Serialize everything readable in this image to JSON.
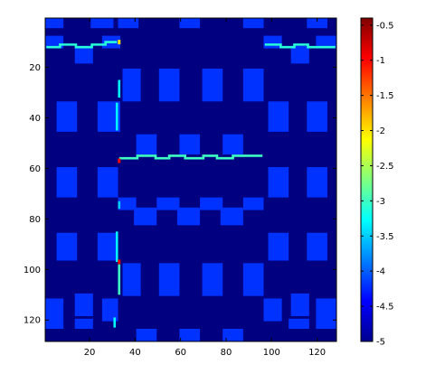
{
  "chart_data": {
    "type": "heatmap",
    "title": "",
    "xlabel": "",
    "ylabel": "",
    "xlim": [
      0.5,
      128.5
    ],
    "ylim": [
      128.5,
      0.5
    ],
    "x_ticks": [
      20,
      40,
      60,
      80,
      100,
      120
    ],
    "y_ticks": [
      20,
      40,
      60,
      80,
      100,
      120
    ],
    "colormap": "jet",
    "clim": [
      -5,
      -0.4
    ],
    "background_value": -5,
    "colorbar": {
      "placement": "right",
      "ticks": [
        "-0.5",
        "-1",
        "-1.5",
        "-2",
        "-2.5",
        "-3",
        "-3.5",
        "-4",
        "-4.5",
        "-5"
      ],
      "tick_values": [
        -0.5,
        -1,
        -1.5,
        -2,
        -2.5,
        -3,
        -3.5,
        -4,
        -4.5,
        -5
      ]
    },
    "blocks_value": -4.2,
    "blocks": [
      [
        1,
        1,
        8,
        4
      ],
      [
        21,
        1,
        30,
        4
      ],
      [
        33,
        1,
        41,
        4
      ],
      [
        60,
        1,
        68,
        4
      ],
      [
        88,
        1,
        96,
        4
      ],
      [
        116,
        1,
        124,
        4
      ],
      [
        1,
        8,
        8,
        12
      ],
      [
        14,
        12,
        21,
        18
      ],
      [
        26,
        8,
        33,
        12
      ],
      [
        97,
        8,
        104,
        12
      ],
      [
        109,
        12,
        116,
        18
      ],
      [
        120,
        8,
        128,
        12
      ],
      [
        35,
        21,
        42,
        33
      ],
      [
        51,
        21,
        59,
        33
      ],
      [
        70,
        21,
        78,
        33
      ],
      [
        88,
        21,
        96,
        33
      ],
      [
        6,
        34,
        14,
        45
      ],
      [
        24,
        34,
        33,
        45
      ],
      [
        99,
        34,
        107,
        45
      ],
      [
        116,
        34,
        124,
        45
      ],
      [
        41,
        47,
        49,
        54
      ],
      [
        60,
        47,
        68,
        54
      ],
      [
        79,
        47,
        87,
        54
      ],
      [
        6,
        60,
        14,
        71
      ],
      [
        24,
        60,
        32,
        71
      ],
      [
        99,
        60,
        107,
        71
      ],
      [
        116,
        60,
        124,
        71
      ],
      [
        33,
        72,
        40,
        76
      ],
      [
        40,
        76,
        49,
        82
      ],
      [
        50,
        72,
        59,
        76
      ],
      [
        59,
        76,
        68,
        82
      ],
      [
        69,
        72,
        78,
        76
      ],
      [
        78,
        76,
        87,
        82
      ],
      [
        88,
        72,
        96,
        76
      ],
      [
        6,
        86,
        14,
        96
      ],
      [
        24,
        86,
        32,
        96
      ],
      [
        99,
        86,
        107,
        96
      ],
      [
        116,
        86,
        124,
        96
      ],
      [
        35,
        98,
        42,
        110
      ],
      [
        51,
        98,
        59,
        110
      ],
      [
        70,
        98,
        78,
        110
      ],
      [
        88,
        98,
        96,
        110
      ],
      [
        1,
        112,
        8,
        120
      ],
      [
        14,
        110,
        21,
        118
      ],
      [
        26,
        112,
        32,
        120
      ],
      [
        97,
        112,
        104,
        120
      ],
      [
        109,
        110,
        116,
        118
      ],
      [
        120,
        112,
        128,
        120
      ],
      [
        1,
        120,
        8,
        123
      ],
      [
        14,
        120,
        21,
        123
      ],
      [
        108,
        120,
        116,
        123
      ],
      [
        120,
        120,
        128,
        123
      ],
      [
        41,
        124,
        49,
        128
      ],
      [
        60,
        124,
        68,
        128
      ],
      [
        79,
        124,
        87,
        128
      ]
    ],
    "lines": [
      {
        "value": -3.1,
        "points": [
          [
            1,
            12
          ],
          [
            7,
            12
          ],
          [
            7,
            11
          ],
          [
            14,
            11
          ],
          [
            14,
            12
          ],
          [
            21,
            12
          ],
          [
            21,
            11
          ],
          [
            27,
            11
          ],
          [
            27,
            10
          ],
          [
            32,
            10
          ]
        ]
      },
      {
        "value": -3.1,
        "points": [
          [
            97,
            11
          ],
          [
            104,
            11
          ],
          [
            104,
            12
          ],
          [
            110,
            12
          ],
          [
            110,
            11
          ],
          [
            116,
            11
          ],
          [
            116,
            12
          ],
          [
            128,
            12
          ]
        ]
      },
      {
        "value": -3.0,
        "points": [
          [
            33,
            56
          ],
          [
            41,
            56
          ],
          [
            41,
            55
          ],
          [
            49,
            55
          ],
          [
            49,
            56
          ],
          [
            55,
            56
          ],
          [
            55,
            55
          ],
          [
            62,
            55
          ],
          [
            62,
            56
          ],
          [
            70,
            56
          ],
          [
            70,
            55
          ],
          [
            76,
            55
          ],
          [
            76,
            56
          ],
          [
            83,
            56
          ],
          [
            83,
            55
          ],
          [
            96,
            55
          ]
        ]
      },
      {
        "value": -3.3,
        "points": [
          [
            33,
            25
          ],
          [
            33,
            32
          ]
        ]
      },
      {
        "value": -3.3,
        "points": [
          [
            32,
            34
          ],
          [
            32,
            45
          ]
        ]
      },
      {
        "value": -3.5,
        "points": [
          [
            33,
            73
          ],
          [
            33,
            76
          ]
        ]
      },
      {
        "value": -3.3,
        "points": [
          [
            32,
            85
          ],
          [
            32,
            97
          ]
        ]
      },
      {
        "value": -3.0,
        "points": [
          [
            33,
            98
          ],
          [
            33,
            110
          ]
        ]
      },
      {
        "value": -3.3,
        "points": [
          [
            31,
            119
          ],
          [
            31,
            123
          ]
        ]
      }
    ],
    "hot_spots": [
      {
        "x": 33,
        "y": 57,
        "value": -1.0
      },
      {
        "x": 33,
        "y": 97,
        "value": -0.9
      },
      {
        "x": 33,
        "y": 10,
        "value": -2.0
      }
    ]
  }
}
